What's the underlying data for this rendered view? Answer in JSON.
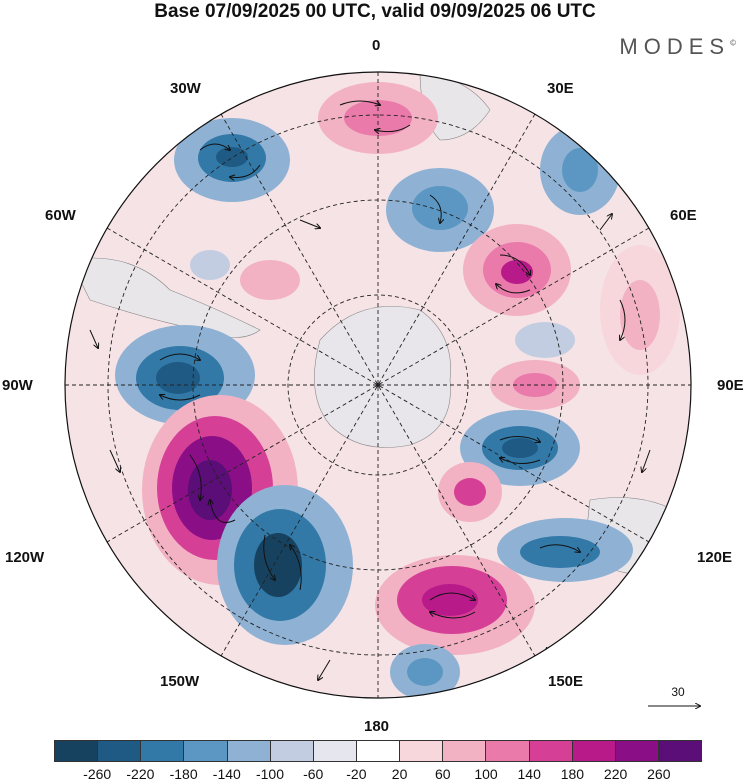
{
  "title": "Base 07/09/2025 00 UTC, valid 09/09/2025 06 UTC",
  "brand": "MODES",
  "brand_mark": "©",
  "longitude_labels": {
    "l0": "0",
    "l30e": "30E",
    "l60e": "60E",
    "l90e": "90E",
    "l120e": "120E",
    "l150e": "150E",
    "l180": "180",
    "l150w": "150W",
    "l120w": "120W",
    "l90w": "90W",
    "l60w": "60W",
    "l30w": "30W"
  },
  "reference_vector": {
    "value": "30",
    "icon": "right-arrow-icon"
  },
  "colorbar": {
    "colors": [
      "#17425f",
      "#1f5a85",
      "#3279a8",
      "#5b97c2",
      "#8fb2d4",
      "#c2cde2",
      "#e6e6ef",
      "#ffffff",
      "#f7d7dc",
      "#f2b2c4",
      "#e97aaa",
      "#d63f96",
      "#b81a8a",
      "#8a0f86",
      "#5b0d78"
    ],
    "ticks": [
      "-260",
      "-220",
      "-180",
      "-140",
      "-100",
      "-60",
      "-20",
      "20",
      "60",
      "100",
      "140",
      "180",
      "220",
      "260"
    ]
  },
  "colors": {
    "ocean_neutral": "#f2ecee",
    "land": "#e9e6ea",
    "grid": "#222222"
  }
}
